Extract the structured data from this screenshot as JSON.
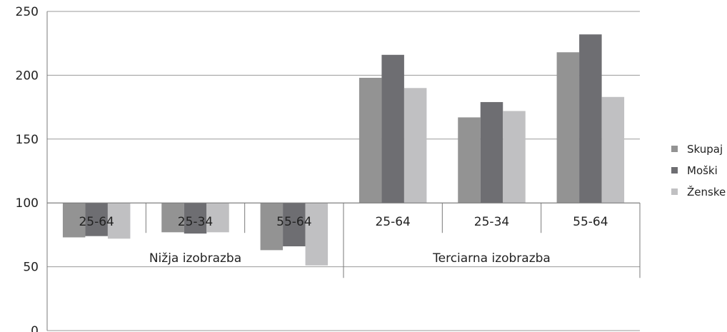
{
  "chart_data": {
    "type": "bar",
    "title": "",
    "xlabel": "",
    "ylabel": "",
    "ylim": [
      0,
      250
    ],
    "yticks": [
      0,
      50,
      100,
      150,
      200,
      250
    ],
    "baseline": 100,
    "grid": true,
    "legend_position": "right",
    "groups": [
      {
        "label": "Nižja izobrazba",
        "categories": [
          "25-64",
          "25-34",
          "55-64"
        ]
      },
      {
        "label": "Terciarna izobrazba",
        "categories": [
          "25-64",
          "25-34",
          "55-64"
        ]
      }
    ],
    "categories": [
      "25-64",
      "25-34",
      "55-64",
      "25-64",
      "25-34",
      "55-64"
    ],
    "series": [
      {
        "name": "Skupaj",
        "color": "#939393",
        "values": [
          73,
          77,
          63,
          198,
          167,
          218
        ]
      },
      {
        "name": "Moški",
        "color": "#6e6e72",
        "values": [
          74,
          76,
          66,
          216,
          179,
          232
        ]
      },
      {
        "name": "Ženske",
        "color": "#c0c0c2",
        "values": [
          72,
          77,
          51,
          190,
          172,
          183
        ]
      }
    ]
  }
}
